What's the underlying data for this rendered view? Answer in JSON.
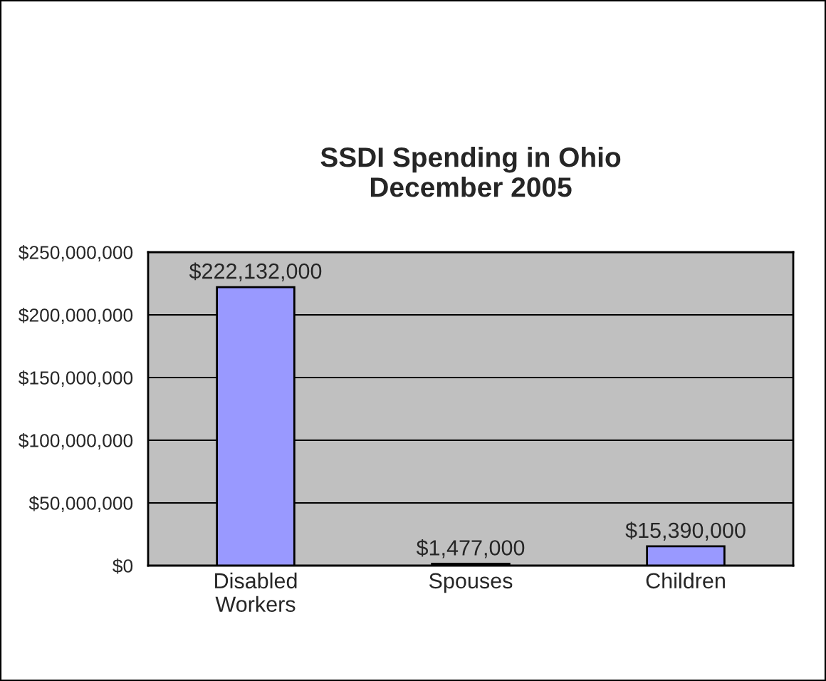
{
  "chart_data": {
    "type": "bar",
    "title": "SSDI Spending in Ohio\nDecember 2005",
    "categories": [
      "Disabled Workers",
      "Spouses",
      "Children"
    ],
    "values": [
      222132000,
      1477000,
      15390000
    ],
    "value_labels": [
      "$222,132,000",
      "$1,477,000",
      "$15,390,000"
    ],
    "color": "#9999ff",
    "ylim": [
      0,
      250000000
    ],
    "yticks": [
      {
        "value": 0,
        "label": "$0"
      },
      {
        "value": 50000000,
        "label": "$50,000,000"
      },
      {
        "value": 100000000,
        "label": "$100,000,000"
      },
      {
        "value": 150000000,
        "label": "$150,000,000"
      },
      {
        "value": 200000000,
        "label": "$200,000,000"
      },
      {
        "value": 250000000,
        "label": "$250,000,000"
      }
    ],
    "grid": "y",
    "legend": false
  }
}
